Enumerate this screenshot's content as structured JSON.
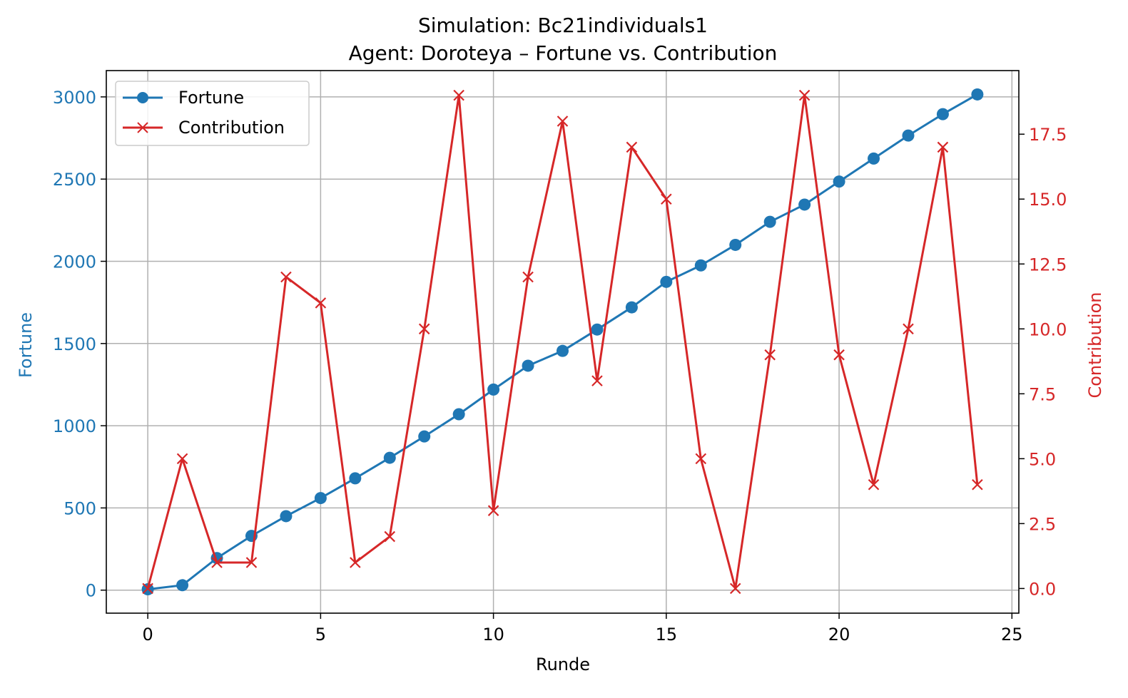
{
  "chart_data": {
    "type": "line",
    "title": "Simulation: Bc21individuals1",
    "subtitle": "Agent: Doroteya – Fortune vs. Contribution",
    "xlabel": "Runde",
    "ylabel_left": "Fortune",
    "ylabel_right": "Contribution",
    "xlim": [
      -1.2,
      25.2
    ],
    "ylim_left": [
      -140,
      3160
    ],
    "ylim_right": [
      -0.95,
      19.95
    ],
    "x_ticks": [
      0,
      5,
      10,
      15,
      20,
      25
    ],
    "y_left_ticks": [
      0,
      500,
      1000,
      1500,
      2000,
      2500,
      3000
    ],
    "y_right_ticks": [
      "0.0",
      "2.5",
      "5.0",
      "7.5",
      "10.0",
      "12.5",
      "15.0",
      "17.5"
    ],
    "grid": true,
    "legend_position": "top-left",
    "colors": {
      "fortune": "#1f77b4",
      "contribution": "#d62728",
      "grid": "#b0b0b0"
    },
    "x": [
      0,
      1,
      2,
      3,
      4,
      5,
      6,
      7,
      8,
      9,
      10,
      11,
      12,
      13,
      14,
      15,
      16,
      17,
      18,
      19,
      20,
      21,
      22,
      23,
      24
    ],
    "series": [
      {
        "name": "Fortune",
        "axis": "left",
        "marker": "circle",
        "values": [
          5,
          30,
          195,
          330,
          450,
          560,
          680,
          805,
          935,
          1070,
          1220,
          1365,
          1455,
          1585,
          1720,
          1875,
          1975,
          2100,
          2240,
          2345,
          2485,
          2625,
          2765,
          2895,
          3015
        ]
      },
      {
        "name": "Contribution",
        "axis": "right",
        "marker": "x",
        "values": [
          0,
          5,
          1,
          1,
          12,
          11,
          1,
          2,
          10,
          19,
          3,
          12,
          18,
          8,
          17,
          15,
          5,
          0,
          9,
          19,
          9,
          4,
          10,
          17,
          4
        ]
      }
    ]
  }
}
